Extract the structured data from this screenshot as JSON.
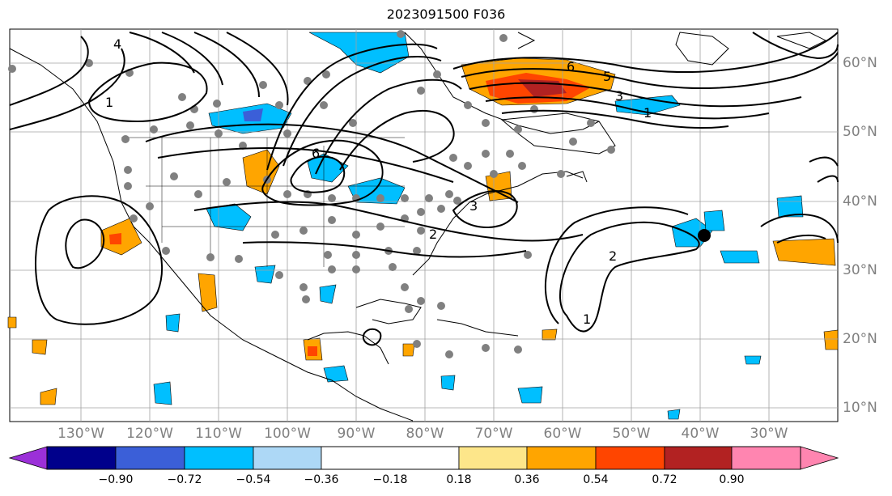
{
  "title": "2023091500 F036",
  "lat_labels": [
    "60°N",
    "50°N",
    "40°N",
    "30°N",
    "20°N",
    "10°N"
  ],
  "lon_labels": [
    "130°W",
    "120°W",
    "110°W",
    "100°W",
    "90°W",
    "80°W",
    "70°W",
    "60°W",
    "50°W",
    "40°W",
    "30°W"
  ],
  "contour_labels": [
    "1",
    "2",
    "3",
    "4",
    "5",
    "6"
  ],
  "colorbar": {
    "tick_labels": [
      "−0.90",
      "−0.72",
      "−0.54",
      "−0.36",
      "−0.18",
      "0.18",
      "0.36",
      "0.54",
      "0.72",
      "0.90"
    ],
    "colors": [
      "#9b30d8",
      "#00008b",
      "#3b5fd8",
      "#00bfff",
      "#add8f6",
      "#ffffff",
      "#fde68a",
      "#ffa500",
      "#ff4500",
      "#b22222",
      "#ff85b0"
    ]
  },
  "colors": {
    "land_outline": "#000000",
    "grid": "#a0a0a0",
    "station_dot": "#808080",
    "marker": "#000000"
  }
}
